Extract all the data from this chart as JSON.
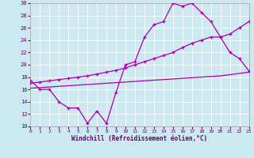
{
  "xlabel": "Windchill (Refroidissement éolien,°C)",
  "bg_color": "#cce8f0",
  "line_color": "#aa00aa",
  "grid_color": "#ffffff",
  "xmin": 0,
  "xmax": 23,
  "ymin": 10,
  "ymax": 30,
  "yticks": [
    10,
    12,
    14,
    16,
    18,
    20,
    22,
    24,
    26,
    28,
    30
  ],
  "xticks": [
    0,
    1,
    2,
    3,
    4,
    5,
    6,
    7,
    8,
    9,
    10,
    11,
    12,
    13,
    14,
    15,
    16,
    17,
    18,
    19,
    20,
    21,
    22,
    23
  ],
  "series": [
    {
      "x": [
        0,
        1,
        2,
        3,
        4,
        5,
        6,
        7,
        8,
        9,
        10,
        11,
        12,
        13,
        14,
        15,
        16,
        17,
        18,
        19,
        20,
        21,
        22,
        23
      ],
      "y": [
        17.5,
        16.0,
        16.0,
        14.0,
        13.0,
        13.0,
        10.5,
        12.5,
        10.5,
        15.5,
        20.0,
        20.5,
        24.5,
        26.5,
        27.0,
        30.0,
        29.5,
        30.0,
        28.5,
        27.0,
        24.5,
        22.0,
        21.0,
        19.0
      ],
      "marker": true
    },
    {
      "x": [
        0,
        1,
        2,
        3,
        4,
        5,
        6,
        7,
        8,
        9,
        10,
        11,
        12,
        13,
        14,
        15,
        16,
        17,
        18,
        19,
        20,
        21,
        22,
        23
      ],
      "y": [
        17.0,
        17.2,
        17.4,
        17.6,
        17.8,
        18.0,
        18.2,
        18.5,
        18.8,
        19.1,
        19.5,
        20.0,
        20.5,
        21.0,
        21.5,
        22.0,
        22.8,
        23.5,
        24.0,
        24.5,
        24.5,
        25.0,
        26.0,
        27.0
      ],
      "marker": true
    },
    {
      "x": [
        0,
        1,
        2,
        3,
        4,
        5,
        6,
        7,
        8,
        9,
        10,
        11,
        12,
        13,
        14,
        15,
        16,
        17,
        18,
        19,
        20,
        21,
        22,
        23
      ],
      "y": [
        16.2,
        16.3,
        16.4,
        16.5,
        16.6,
        16.7,
        16.8,
        16.9,
        17.0,
        17.1,
        17.2,
        17.3,
        17.4,
        17.5,
        17.6,
        17.7,
        17.8,
        17.9,
        18.0,
        18.1,
        18.2,
        18.4,
        18.6,
        18.8
      ],
      "marker": false
    }
  ]
}
